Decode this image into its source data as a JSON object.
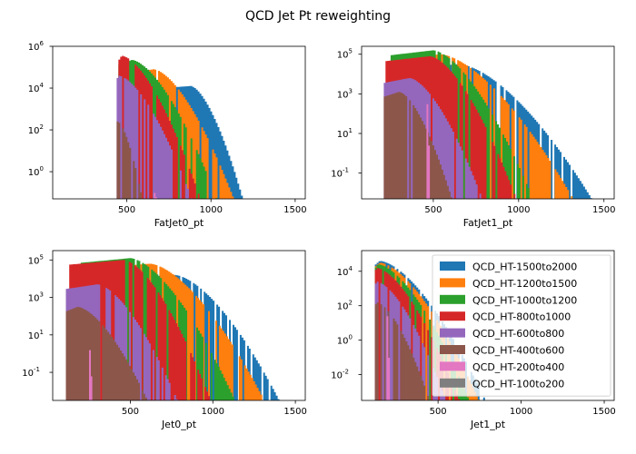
{
  "suptitle": "QCD Jet Pt reweighting",
  "colors": {
    "QCD_HT-1500to2000": "#1f77b4",
    "QCD_HT-1200to1500": "#ff7f0e",
    "QCD_HT-1000to1200": "#2ca02c",
    "QCD_HT-800to1000": "#d62728",
    "QCD_HT-600to800": "#9467bd",
    "QCD_HT-400to600": "#8c564b",
    "QCD_HT-200to400": "#e377c2",
    "QCD_HT-100to200": "#7f7f7f"
  },
  "legend": {
    "placement": "upper-right of bottom-right panel",
    "entries": [
      "QCD_HT-1500to2000",
      "QCD_HT-1200to1500",
      "QCD_HT-1000to1200",
      "QCD_HT-800to1000",
      "QCD_HT-600to800",
      "QCD_HT-400to600",
      "QCD_HT-200to400",
      "QCD_HT-100to200"
    ]
  },
  "chart_data": [
    {
      "type": "histogram",
      "xlabel": "FatJet0_pt",
      "xlim": [
        60,
        1560
      ],
      "ylim_log10": [
        -1.3,
        6
      ],
      "yscale": "log",
      "x_ticks": [
        500,
        1000,
        1500
      ],
      "y_ticks_exp": [
        0,
        2,
        4,
        6
      ],
      "series": [
        {
          "name": "QCD_HT-1500to2000",
          "start": 450,
          "end": 1200,
          "peak_x": 880,
          "peak_log": 4.1,
          "spiky": false
        },
        {
          "name": "QCD_HT-1200to1500",
          "start": 450,
          "end": 1150,
          "peak_x": 660,
          "peak_log": 4.9,
          "spiky": true
        },
        {
          "name": "QCD_HT-1000to1200",
          "start": 450,
          "end": 1050,
          "peak_x": 530,
          "peak_log": 5.35,
          "spiky": true
        },
        {
          "name": "QCD_HT-800to1000",
          "start": 450,
          "end": 950,
          "peak_x": 470,
          "peak_log": 5.55,
          "spiky": true
        },
        {
          "name": "QCD_HT-600to800",
          "start": 440,
          "end": 900,
          "peak_x": 450,
          "peak_log": 4.6,
          "spiky": true
        },
        {
          "name": "QCD_HT-400to600",
          "start": 440,
          "end": 600,
          "peak_x": 445,
          "peak_log": 2.4,
          "spiky": true
        },
        {
          "name": "QCD_HT-200to400",
          "start": 660,
          "end": 680,
          "peak_x": 670,
          "peak_log": -0.9,
          "spiky": true
        },
        {
          "name": "QCD_HT-100to200",
          "start": 0,
          "end": 0,
          "peak_x": 0,
          "peak_log": -9,
          "spiky": false
        }
      ]
    },
    {
      "type": "histogram",
      "xlabel": "FatJet1_pt",
      "xlim": [
        80,
        1560
      ],
      "ylim_log10": [
        -2.3,
        5.4
      ],
      "yscale": "log",
      "x_ticks": [
        500,
        1000,
        1500
      ],
      "y_ticks_exp": [
        -1,
        1,
        3,
        5
      ],
      "series": [
        {
          "name": "QCD_HT-1500to2000",
          "start": 300,
          "end": 1450,
          "peak_x": 650,
          "peak_log": 4.5,
          "spiky": true
        },
        {
          "name": "QCD_HT-1200to1500",
          "start": 270,
          "end": 1340,
          "peak_x": 540,
          "peak_log": 5.0,
          "spiky": true
        },
        {
          "name": "QCD_HT-1000to1200",
          "start": 250,
          "end": 1100,
          "peak_x": 500,
          "peak_log": 5.2,
          "spiky": true
        },
        {
          "name": "QCD_HT-800to1000",
          "start": 220,
          "end": 1000,
          "peak_x": 480,
          "peak_log": 4.9,
          "spiky": true
        },
        {
          "name": "QCD_HT-600to800",
          "start": 210,
          "end": 800,
          "peak_x": 360,
          "peak_log": 3.8,
          "spiky": true
        },
        {
          "name": "QCD_HT-400to600",
          "start": 210,
          "end": 620,
          "peak_x": 300,
          "peak_log": 3.1,
          "spiky": true
        },
        {
          "name": "QCD_HT-200to400",
          "start": 460,
          "end": 480,
          "peak_x": 470,
          "peak_log": 2.6,
          "spiky": true
        },
        {
          "name": "QCD_HT-100to200",
          "start": 0,
          "end": 0,
          "peak_x": 0,
          "peak_log": -9,
          "spiky": false
        }
      ]
    },
    {
      "type": "histogram",
      "xlabel": "Jet0_pt",
      "xlim": [
        30,
        1560
      ],
      "ylim_log10": [
        -2.5,
        5.5
      ],
      "yscale": "log",
      "x_ticks": [
        500,
        1000,
        1500
      ],
      "y_ticks_exp": [
        -1,
        1,
        3,
        5
      ],
      "series": [
        {
          "name": "QCD_HT-1500to2000",
          "start": 300,
          "end": 1420,
          "peak_x": 770,
          "peak_log": 4.2,
          "spiky": true
        },
        {
          "name": "QCD_HT-1200to1500",
          "start": 250,
          "end": 1330,
          "peak_x": 620,
          "peak_log": 4.8,
          "spiky": true
        },
        {
          "name": "QCD_HT-1000to1200",
          "start": 200,
          "end": 1150,
          "peak_x": 500,
          "peak_log": 5.1,
          "spiky": true
        },
        {
          "name": "QCD_HT-800to1000",
          "start": 130,
          "end": 1000,
          "peak_x": 460,
          "peak_log": 5.0,
          "spiky": true
        },
        {
          "name": "QCD_HT-600to800",
          "start": 110,
          "end": 800,
          "peak_x": 300,
          "peak_log": 3.7,
          "spiky": true
        },
        {
          "name": "QCD_HT-400to600",
          "start": 110,
          "end": 620,
          "peak_x": 180,
          "peak_log": 2.5,
          "spiky": true
        },
        {
          "name": "QCD_HT-200to400",
          "start": 250,
          "end": 270,
          "peak_x": 260,
          "peak_log": 0.3,
          "spiky": true
        },
        {
          "name": "QCD_HT-100to200",
          "start": 0,
          "end": 0,
          "peak_x": 0,
          "peak_log": -9,
          "spiky": false
        }
      ]
    },
    {
      "type": "histogram",
      "xlabel": "Jet1_pt",
      "xlim": [
        40,
        1560
      ],
      "ylim_log10": [
        -3.5,
        5.2
      ],
      "yscale": "log",
      "x_ticks": [
        500,
        1000,
        1500
      ],
      "y_ticks_exp": [
        -2,
        0,
        2,
        4
      ],
      "series": [
        {
          "name": "QCD_HT-1500to2000",
          "start": 120,
          "end": 800,
          "peak_x": 150,
          "peak_log": 4.6,
          "spiky": true
        },
        {
          "name": "QCD_HT-1200to1500",
          "start": 120,
          "end": 760,
          "peak_x": 150,
          "peak_log": 4.5,
          "spiky": true
        },
        {
          "name": "QCD_HT-1000to1200",
          "start": 120,
          "end": 700,
          "peak_x": 140,
          "peak_log": 4.4,
          "spiky": true
        },
        {
          "name": "QCD_HT-800to1000",
          "start": 120,
          "end": 640,
          "peak_x": 130,
          "peak_log": 4.2,
          "spiky": true
        },
        {
          "name": "QCD_HT-600to800",
          "start": 120,
          "end": 560,
          "peak_x": 130,
          "peak_log": 3.4,
          "spiky": true
        },
        {
          "name": "QCD_HT-400to600",
          "start": 120,
          "end": 460,
          "peak_x": 130,
          "peak_log": 2.2,
          "spiky": true
        },
        {
          "name": "QCD_HT-200to400",
          "start": 190,
          "end": 210,
          "peak_x": 200,
          "peak_log": 1.5,
          "spiky": true
        },
        {
          "name": "QCD_HT-100to200",
          "start": 0,
          "end": 0,
          "peak_x": 0,
          "peak_log": -9,
          "spiky": false
        }
      ]
    }
  ]
}
